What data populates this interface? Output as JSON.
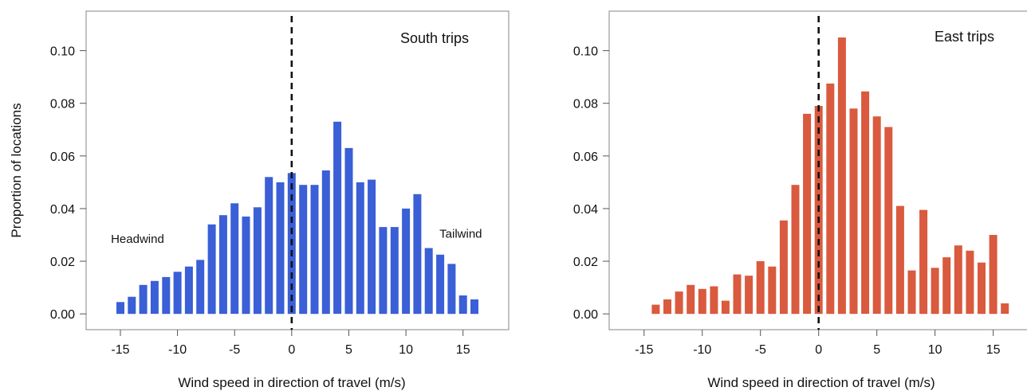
{
  "chart_data": [
    {
      "type": "bar",
      "title": "South trips",
      "xlabel": "Wind speed in direction of travel (m/s)",
      "ylabel": "Proportion of locations",
      "color": "#3a5fd6",
      "xlim": [
        -18,
        19
      ],
      "ylim": [
        -0.006,
        0.115
      ],
      "x_ticks": [
        -15,
        -10,
        -5,
        0,
        5,
        10,
        15
      ],
      "x_tick_labels": [
        "-15",
        "-10",
        "-5",
        "0",
        "5",
        "10",
        "15"
      ],
      "y_ticks": [
        0.0,
        0.02,
        0.04,
        0.06,
        0.08,
        0.1
      ],
      "y_tick_labels": [
        "0.00",
        "0.02",
        "0.04",
        "0.06",
        "0.08",
        "0.10"
      ],
      "zero_line": true,
      "annotations": [
        {
          "text": "Headwind",
          "x": -13.5,
          "y": 0.027
        },
        {
          "text": "Tailwind",
          "x": 14.8,
          "y": 0.029
        }
      ],
      "x": [
        -15,
        -14,
        -13,
        -12,
        -11,
        -10,
        -9,
        -8,
        -7,
        -6,
        -5,
        -4,
        -3,
        -2,
        -1,
        0,
        1,
        2,
        3,
        4,
        5,
        6,
        7,
        8,
        9,
        10,
        11,
        12,
        13,
        14,
        15,
        16
      ],
      "values": [
        0.0045,
        0.0065,
        0.011,
        0.0125,
        0.014,
        0.016,
        0.018,
        0.0205,
        0.034,
        0.0375,
        0.042,
        0.037,
        0.0405,
        0.052,
        0.05,
        0.0535,
        0.049,
        0.049,
        0.0545,
        0.073,
        0.063,
        0.05,
        0.051,
        0.033,
        0.033,
        0.04,
        0.0455,
        0.025,
        0.0225,
        0.019,
        0.007,
        0.0055
      ]
    },
    {
      "type": "bar",
      "title": "East trips",
      "xlabel": "Wind speed in direction of travel (m/s)",
      "ylabel": "",
      "color": "#d95a3e",
      "xlim": [
        -18,
        19
      ],
      "ylim": [
        -0.006,
        0.115
      ],
      "x_ticks": [
        -15,
        -10,
        -5,
        0,
        5,
        10,
        15
      ],
      "x_tick_labels": [
        "-15",
        "-10",
        "-5",
        "0",
        "5",
        "10",
        "15"
      ],
      "y_ticks": [
        0.0,
        0.02,
        0.04,
        0.06,
        0.08,
        0.1
      ],
      "y_tick_labels": [
        "0.00",
        "0.02",
        "0.04",
        "0.06",
        "0.08",
        "0.10"
      ],
      "zero_line": true,
      "annotations": [],
      "x": [
        -14,
        -13,
        -12,
        -11,
        -10,
        -9,
        -8,
        -7,
        -6,
        -5,
        -4,
        -3,
        -2,
        -1,
        0,
        1,
        2,
        3,
        4,
        5,
        6,
        7,
        8,
        9,
        10,
        11,
        12,
        13,
        14,
        15,
        16
      ],
      "values": [
        0.0035,
        0.0055,
        0.0085,
        0.011,
        0.0095,
        0.0105,
        0.005,
        0.015,
        0.0145,
        0.02,
        0.018,
        0.0355,
        0.049,
        0.076,
        0.079,
        0.0875,
        0.105,
        0.078,
        0.0845,
        0.075,
        0.071,
        0.041,
        0.0165,
        0.0395,
        0.0175,
        0.0215,
        0.026,
        0.024,
        0.0195,
        0.03,
        0.004
      ]
    }
  ]
}
